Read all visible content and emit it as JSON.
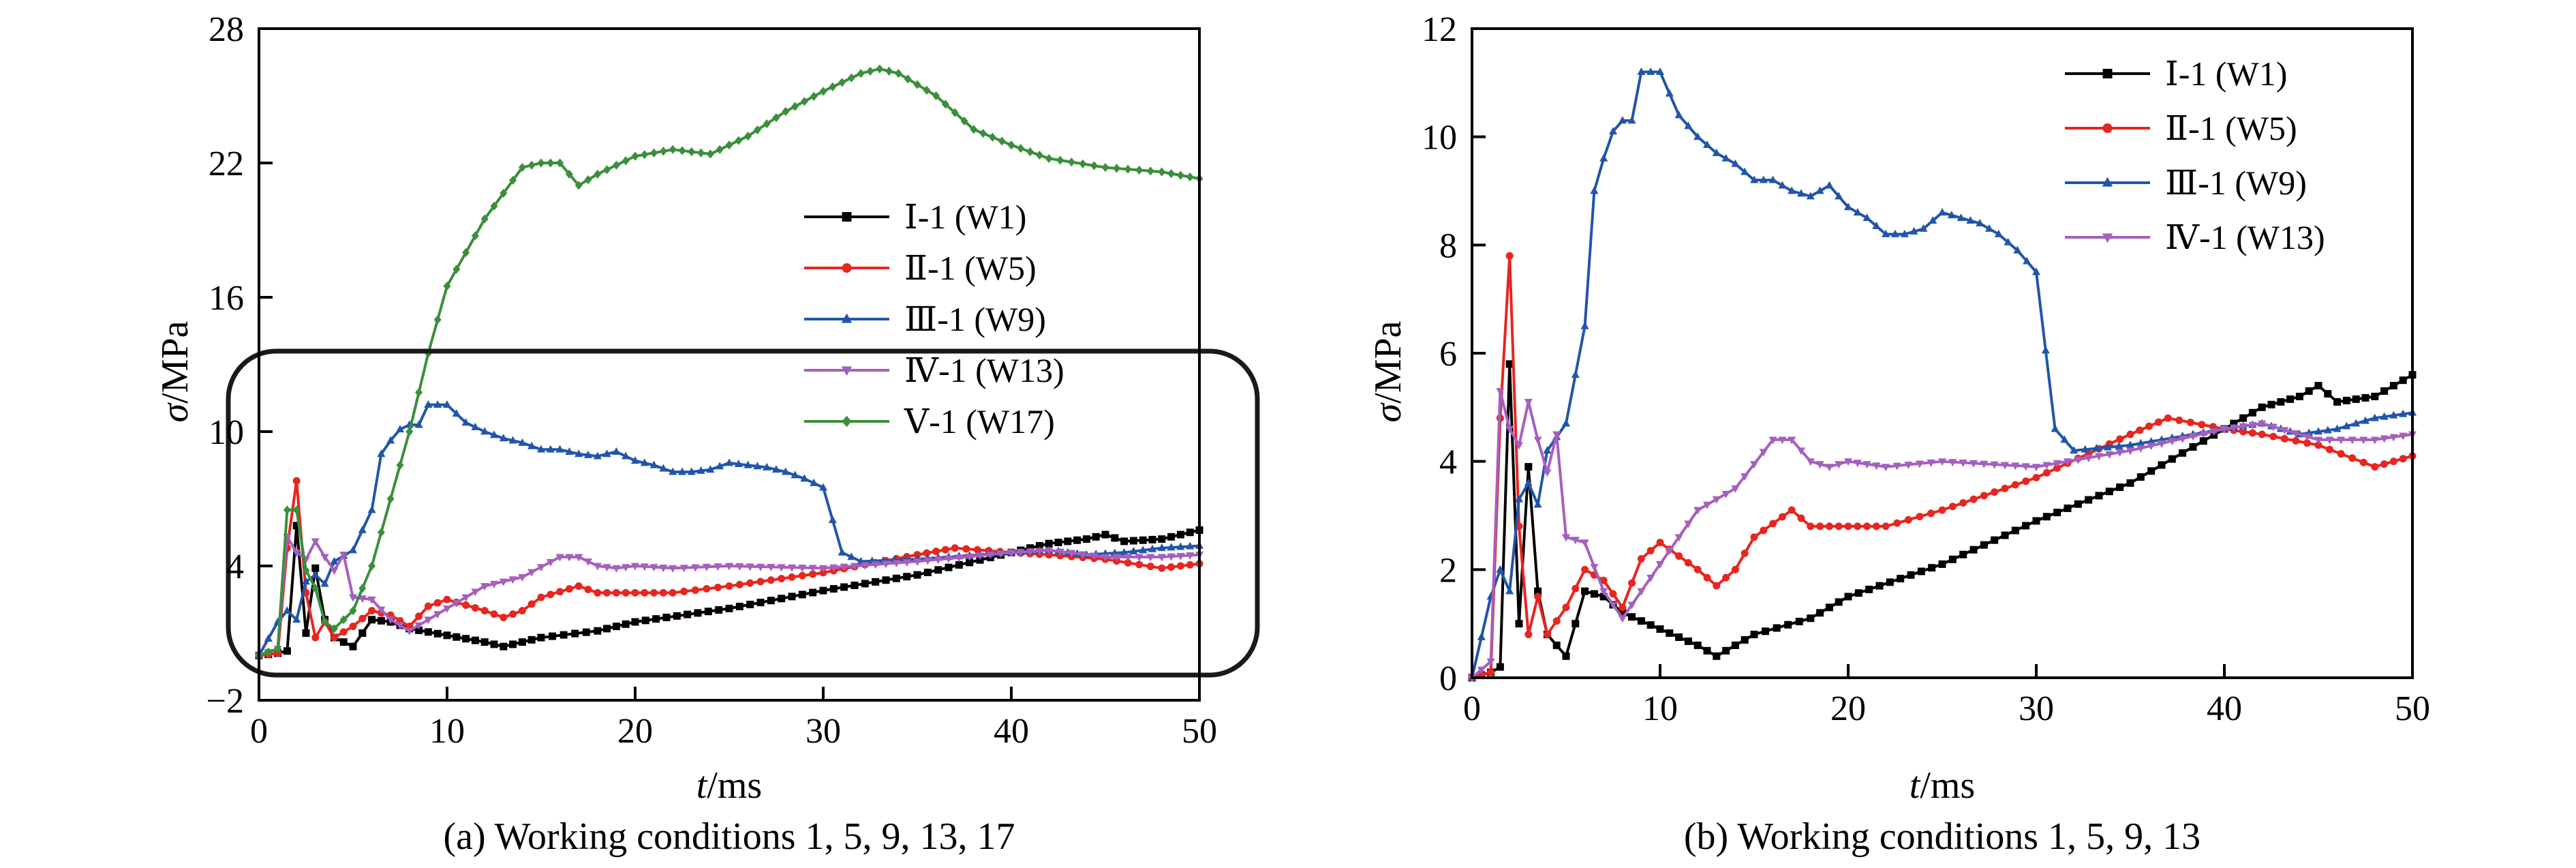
{
  "chart_data": [
    {
      "type": "line",
      "caption": "(a) Working conditions 1, 5, 9, 13, 17",
      "xlabel_italic": "t",
      "xlabel_unit": "/ms",
      "ylabel_italic": "σ",
      "ylabel_unit": "/MPa",
      "xlim": [
        0,
        50
      ],
      "ylim": [
        -2,
        28
      ],
      "xticks": [
        "0",
        "10",
        "20",
        "30",
        "40",
        "50"
      ],
      "yticks": [
        "−2",
        "4",
        "10",
        "16",
        "22",
        "28"
      ],
      "ytick_values": [
        -2,
        4,
        10,
        16,
        22,
        28
      ],
      "xtick_values": [
        0,
        10,
        20,
        30,
        40,
        50
      ],
      "grid": false,
      "legend_position": "center-right",
      "annotation": "rounded rectangle highlighting the 0–14 MPa range",
      "series": [
        {
          "name": "Ⅰ-1 (W1)",
          "color": "#000000",
          "marker": "square",
          "x": [
            0,
            1,
            1.5,
            2,
            2.5,
            3,
            3.5,
            4,
            5,
            6,
            7,
            8,
            10,
            12,
            13,
            15,
            18,
            20,
            25,
            30,
            35,
            40,
            42,
            44,
            45,
            46,
            48,
            50
          ],
          "y": [
            0,
            0.1,
            0.2,
            5.8,
            1.0,
            3.9,
            1.6,
            0.8,
            0.4,
            1.6,
            1.5,
            1.2,
            0.9,
            0.6,
            0.4,
            0.8,
            1.1,
            1.5,
            2.1,
            2.9,
            3.6,
            4.6,
            5.0,
            5.2,
            5.4,
            5.1,
            5.2,
            5.6
          ]
        },
        {
          "name": "Ⅱ-1 (W5)",
          "color": "#e8251f",
          "marker": "circle",
          "x": [
            0,
            1,
            1.5,
            2,
            2.5,
            3,
            3.5,
            4,
            5,
            6,
            7,
            8,
            9,
            10,
            12,
            13,
            14,
            15,
            17,
            18,
            20,
            22,
            25,
            30,
            35,
            37,
            40,
            42,
            45,
            48,
            50
          ],
          "y": [
            0,
            0.1,
            4.8,
            7.8,
            2.8,
            0.8,
            1.5,
            0.8,
            1.3,
            2.0,
            1.8,
            1.3,
            2.2,
            2.5,
            2.0,
            1.7,
            2.0,
            2.6,
            3.1,
            2.8,
            2.8,
            2.8,
            3.1,
            3.7,
            4.5,
            4.8,
            4.6,
            4.5,
            4.3,
            3.9,
            4.1
          ]
        },
        {
          "name": "Ⅲ-1 (W9)",
          "color": "#2255aa",
          "marker": "triangle-up",
          "x": [
            0,
            1,
            1.5,
            2,
            2.5,
            3,
            3.5,
            4,
            5,
            6,
            6.5,
            7,
            7.5,
            8,
            8.5,
            9,
            10,
            11,
            12,
            13,
            14,
            15,
            16,
            17,
            18,
            19,
            20,
            21,
            22,
            23,
            24,
            25,
            26,
            27,
            28,
            29,
            30,
            31,
            32,
            35,
            40,
            42,
            44,
            46,
            48,
            50
          ],
          "y": [
            0,
            1.5,
            2.0,
            1.6,
            3.3,
            3.6,
            3.2,
            4.2,
            4.7,
            6.5,
            9.0,
            9.6,
            10.1,
            10.3,
            10.3,
            11.2,
            11.2,
            10.4,
            10.0,
            9.7,
            9.5,
            9.2,
            9.2,
            9.0,
            8.9,
            9.1,
            8.7,
            8.5,
            8.2,
            8.2,
            8.3,
            8.6,
            8.5,
            8.4,
            8.2,
            7.9,
            7.5,
            4.6,
            4.2,
            4.3,
            4.6,
            4.7,
            4.5,
            4.6,
            4.8,
            4.9
          ]
        },
        {
          "name": "Ⅳ-1 (W13)",
          "color": "#a55fbe",
          "marker": "triangle-down",
          "x": [
            0,
            1,
            1.5,
            2,
            2.5,
            3,
            3.5,
            4,
            4.5,
            5,
            6,
            7,
            8,
            9,
            10,
            12,
            14,
            16,
            17,
            18,
            19,
            20,
            22,
            25,
            30,
            35,
            40,
            42,
            45,
            48,
            50
          ],
          "y": [
            0,
            0.3,
            5.3,
            4.6,
            4.3,
            5.1,
            4.4,
            3.8,
            4.5,
            2.6,
            2.5,
            1.6,
            1.1,
            1.6,
            2.1,
            3.1,
            3.5,
            4.4,
            4.4,
            4.0,
            3.9,
            4.0,
            3.9,
            4.0,
            3.9,
            4.2,
            4.6,
            4.7,
            4.4,
            4.4,
            4.5
          ]
        },
        {
          "name": "Ⅴ-1 (W17)",
          "color": "#3b8f3b",
          "marker": "diamond",
          "x": [
            0,
            1,
            1.5,
            2,
            2.5,
            3,
            3.5,
            4,
            5,
            6,
            7,
            8,
            9,
            10,
            12,
            14,
            15,
            16,
            17,
            18,
            20,
            22,
            24,
            26,
            28,
            30,
            32,
            33,
            34,
            36,
            38,
            40,
            42,
            45,
            48,
            50
          ],
          "y": [
            0,
            0.3,
            6.5,
            6.5,
            3.8,
            3.0,
            1.5,
            1.2,
            2.0,
            4.0,
            7.0,
            10.0,
            13.5,
            16.5,
            19.5,
            21.8,
            22.0,
            22.0,
            21.0,
            21.5,
            22.3,
            22.6,
            22.4,
            23.2,
            24.3,
            25.2,
            26.0,
            26.2,
            26.0,
            25.0,
            23.5,
            22.8,
            22.2,
            21.8,
            21.6,
            21.3
          ]
        }
      ]
    },
    {
      "type": "line",
      "caption": "(b) Working conditions 1, 5, 9, 13",
      "xlabel_italic": "t",
      "xlabel_unit": "/ms",
      "ylabel_italic": "σ",
      "ylabel_unit": "/MPa",
      "xlim": [
        0,
        50
      ],
      "ylim": [
        0,
        12
      ],
      "xticks": [
        "0",
        "10",
        "20",
        "30",
        "40",
        "50"
      ],
      "yticks": [
        "0",
        "2",
        "4",
        "6",
        "8",
        "10",
        "12"
      ],
      "ytick_values": [
        0,
        2,
        4,
        6,
        8,
        10,
        12
      ],
      "xtick_values": [
        0,
        10,
        20,
        30,
        40,
        50
      ],
      "grid": false,
      "legend_position": "top-right",
      "series": [
        {
          "name": "Ⅰ-1 (W1)",
          "color": "#000000",
          "marker": "square",
          "x": [
            0,
            1,
            1.5,
            2,
            2.5,
            3,
            3.5,
            4,
            5,
            6,
            7,
            8,
            10,
            12,
            13,
            15,
            18,
            20,
            25,
            30,
            35,
            40,
            42,
            44,
            45,
            46,
            48,
            50
          ],
          "y": [
            0,
            0.1,
            0.2,
            5.8,
            1.0,
            3.9,
            1.6,
            0.8,
            0.4,
            1.6,
            1.5,
            1.2,
            0.9,
            0.6,
            0.4,
            0.8,
            1.1,
            1.5,
            2.1,
            2.9,
            3.6,
            4.6,
            5.0,
            5.2,
            5.4,
            5.1,
            5.2,
            5.6
          ]
        },
        {
          "name": "Ⅱ-1 (W5)",
          "color": "#e8251f",
          "marker": "circle",
          "x": [
            0,
            1,
            1.5,
            2,
            2.5,
            3,
            3.5,
            4,
            5,
            6,
            7,
            8,
            9,
            10,
            12,
            13,
            14,
            15,
            17,
            18,
            20,
            22,
            25,
            30,
            35,
            37,
            40,
            42,
            45,
            48,
            50
          ],
          "y": [
            0,
            0.1,
            4.8,
            7.8,
            2.8,
            0.8,
            1.5,
            0.8,
            1.3,
            2.0,
            1.8,
            1.3,
            2.2,
            2.5,
            2.0,
            1.7,
            2.0,
            2.6,
            3.1,
            2.8,
            2.8,
            2.8,
            3.1,
            3.7,
            4.5,
            4.8,
            4.6,
            4.5,
            4.3,
            3.9,
            4.1
          ]
        },
        {
          "name": "Ⅲ-1 (W9)",
          "color": "#2255aa",
          "marker": "triangle-up",
          "x": [
            0,
            1,
            1.5,
            2,
            2.5,
            3,
            3.5,
            4,
            5,
            6,
            6.5,
            7,
            7.5,
            8,
            8.5,
            9,
            10,
            11,
            12,
            13,
            14,
            15,
            16,
            17,
            18,
            19,
            20,
            21,
            22,
            23,
            24,
            25,
            26,
            27,
            28,
            29,
            30,
            31,
            32,
            35,
            40,
            42,
            44,
            46,
            48,
            50
          ],
          "y": [
            0,
            1.5,
            2.0,
            1.6,
            3.3,
            3.6,
            3.2,
            4.2,
            4.7,
            6.5,
            9.0,
            9.6,
            10.1,
            10.3,
            10.3,
            11.2,
            11.2,
            10.4,
            10.0,
            9.7,
            9.5,
            9.2,
            9.2,
            9.0,
            8.9,
            9.1,
            8.7,
            8.5,
            8.2,
            8.2,
            8.3,
            8.6,
            8.5,
            8.4,
            8.2,
            7.9,
            7.5,
            4.6,
            4.2,
            4.3,
            4.6,
            4.7,
            4.5,
            4.6,
            4.8,
            4.9
          ]
        },
        {
          "name": "Ⅳ-1 (W13)",
          "color": "#a55fbe",
          "marker": "triangle-down",
          "x": [
            0,
            1,
            1.5,
            2,
            2.5,
            3,
            3.5,
            4,
            4.5,
            5,
            6,
            7,
            8,
            9,
            10,
            12,
            14,
            16,
            17,
            18,
            19,
            20,
            22,
            25,
            30,
            35,
            40,
            42,
            45,
            48,
            50
          ],
          "y": [
            0,
            0.3,
            5.3,
            4.6,
            4.3,
            5.1,
            4.4,
            3.8,
            4.5,
            2.6,
            2.5,
            1.6,
            1.1,
            1.6,
            2.1,
            3.1,
            3.5,
            4.4,
            4.4,
            4.0,
            3.9,
            4.0,
            3.9,
            4.0,
            3.9,
            4.2,
            4.6,
            4.7,
            4.4,
            4.4,
            4.5
          ]
        }
      ]
    }
  ]
}
